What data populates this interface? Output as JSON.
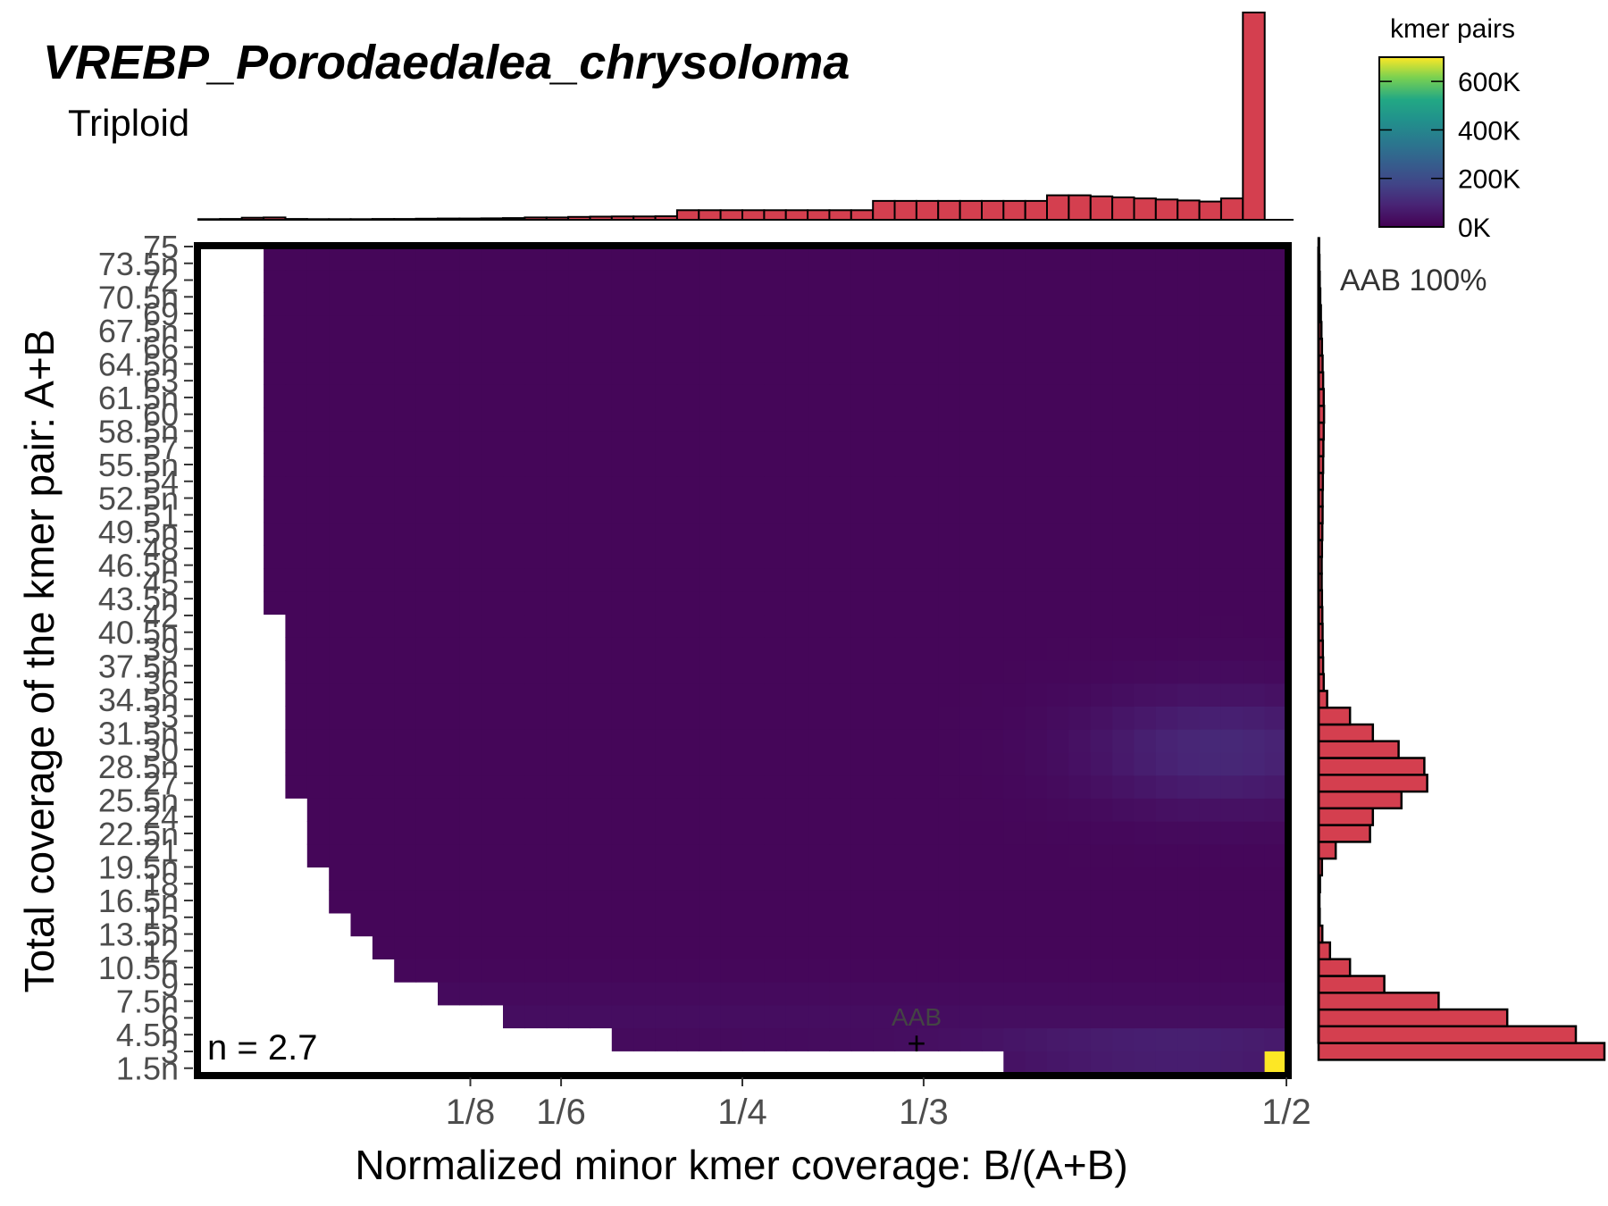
{
  "chart_data": {
    "type": "heatmap",
    "title": "VREBP_Porodaedalea_chrysoloma",
    "subtitle": "Triploid",
    "xlabel": "Normalized minor kmer coverage: B/(A+B)",
    "ylabel": "Total coverage of the kmer pair: A+B",
    "x_ticks": [
      {
        "value": 0.125,
        "label": "1/8"
      },
      {
        "value": 0.1667,
        "label": "1/6"
      },
      {
        "value": 0.25,
        "label": "1/4"
      },
      {
        "value": 0.3333,
        "label": "1/3"
      },
      {
        "value": 0.5,
        "label": "1/2"
      }
    ],
    "xlim": [
      0,
      0.5
    ],
    "ylim": [
      1,
      75
    ],
    "y_ticks_primary": [
      "1.5n",
      "4.5n",
      "7.5n",
      "10.5n",
      "13.5n",
      "16.5n",
      "19.5n",
      "22.5n",
      "25.5n",
      "28.5n",
      "31.5n",
      "34.5n",
      "37.5n",
      "40.5n",
      "43.5n",
      "46.5n",
      "49.5n",
      "52.5n",
      "55.5n",
      "58.5n",
      "61.5n",
      "64.5n",
      "67.5n",
      "70.5n",
      "73.5n"
    ],
    "y_ticks_secondary": [
      "3",
      "6",
      "9",
      "12",
      "15",
      "18",
      "21",
      "24",
      "27",
      "30",
      "33",
      "36",
      "39",
      "42",
      "45",
      "48",
      "51",
      "54",
      "57",
      "60",
      "63",
      "66",
      "69",
      "72",
      "75"
    ],
    "colorbar": {
      "title": "kmer pairs",
      "labels": [
        "0K",
        "200K",
        "400K",
        "600K"
      ],
      "values": [
        0,
        200000,
        400000,
        600000
      ],
      "max": 700000,
      "colormap": "viridis"
    },
    "annotations": {
      "haploid_estimate": "n = 2.7",
      "smudge_label": "AAB",
      "smudge_marker": "+",
      "smudge_x": 0.3333,
      "smudge_y": 3,
      "proportion_label": "AAB 100%"
    },
    "top_histogram": {
      "x": [
        0.01,
        0.02,
        0.03,
        0.04,
        0.05,
        0.06,
        0.07,
        0.08,
        0.09,
        0.1,
        0.11,
        0.12,
        0.13,
        0.14,
        0.15,
        0.16,
        0.17,
        0.18,
        0.19,
        0.2,
        0.21,
        0.22,
        0.23,
        0.24,
        0.25,
        0.26,
        0.27,
        0.28,
        0.29,
        0.3,
        0.31,
        0.32,
        0.33,
        0.34,
        0.35,
        0.36,
        0.37,
        0.38,
        0.39,
        0.4,
        0.41,
        0.42,
        0.43,
        0.44,
        0.45,
        0.46,
        0.47,
        0.48,
        0.49,
        0.5
      ],
      "values": [
        0.3,
        0.4,
        1.0,
        1.1,
        0.4,
        0.3,
        0.3,
        0.3,
        0.4,
        0.4,
        0.5,
        0.6,
        0.6,
        0.7,
        0.8,
        1.1,
        1.1,
        1.4,
        1.5,
        1.6,
        1.6,
        1.7,
        4.6,
        4.6,
        4.6,
        4.6,
        4.6,
        4.6,
        4.6,
        4.6,
        4.6,
        9.1,
        9.1,
        9.1,
        9.1,
        9.1,
        9.1,
        9.1,
        9.1,
        11.8,
        11.8,
        11.3,
        10.8,
        10.3,
        9.8,
        9.3,
        8.8,
        10.3,
        100,
        0
      ]
    },
    "right_histogram": {
      "y": [
        3,
        4.5,
        6,
        7.5,
        9,
        10.5,
        12,
        13.5,
        15,
        16.5,
        18,
        19.5,
        21,
        22.5,
        24,
        25.5,
        27,
        28.5,
        30,
        31.5,
        33,
        34.5,
        36,
        37.5,
        39,
        40.5,
        42,
        43.5,
        45,
        46.5,
        48,
        49.5,
        51,
        52.5,
        54,
        55.5,
        57,
        58.5,
        60,
        61.5,
        63,
        64.5,
        66,
        67.5,
        69,
        70.5,
        72,
        73.5,
        75
      ],
      "values": [
        100,
        90,
        66,
        42,
        23,
        11,
        4,
        1.3,
        0.4,
        0.3,
        0.5,
        1.2,
        6,
        18,
        19,
        29,
        38,
        37,
        28,
        19,
        11,
        3,
        1.8,
        1.6,
        1.5,
        1.4,
        1.3,
        1.2,
        1.1,
        1.1,
        1.2,
        1.3,
        1.4,
        1.4,
        1.5,
        1.6,
        1.7,
        1.8,
        1.9,
        1.8,
        1.6,
        1.4,
        1.2,
        1.0,
        0.8,
        0.6,
        0.4,
        0.3,
        0.2
      ]
    }
  }
}
